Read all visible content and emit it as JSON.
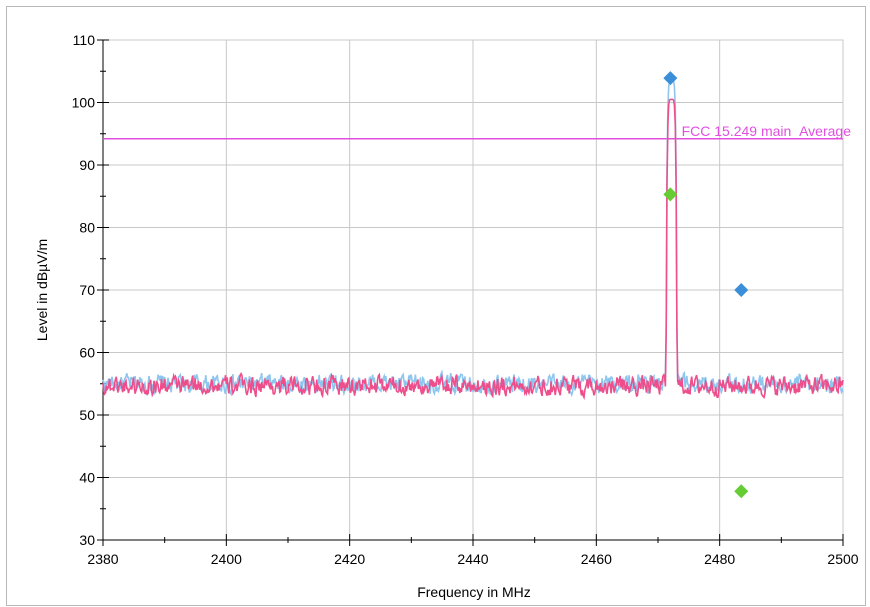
{
  "chart_data": {
    "type": "line",
    "xlabel": "Frequency in MHz",
    "ylabel": "Level in dBµV/m",
    "xlim": [
      2380,
      2500
    ],
    "ylim": [
      30,
      110
    ],
    "x_ticks": [
      "2380",
      "2400",
      "2420",
      "2440",
      "2460",
      "2480",
      "2500"
    ],
    "y_ticks": [
      "30",
      "40",
      "50",
      "60",
      "70",
      "80",
      "90",
      "100",
      "110"
    ],
    "grid": true,
    "limit_line": {
      "label": "FCC 15.249 main_Average",
      "value": 94.2,
      "color": "#e14fe1"
    },
    "series": [
      {
        "color": "#8ec6ee",
        "baseline": 55.0,
        "noise": 1.4,
        "peak": {
          "x": 2472.2,
          "value": 103.5,
          "width": 0.9
        }
      },
      {
        "color": "#ee4f8c",
        "baseline": 54.7,
        "noise": 1.4,
        "peak": {
          "x": 2472.2,
          "value": 100.5,
          "width": 0.9
        }
      }
    ],
    "markers": [
      {
        "x": 2472.0,
        "value": 103.9,
        "color": "#3b8fd8"
      },
      {
        "x": 2472.0,
        "value": 85.3,
        "color": "#66cc33"
      },
      {
        "x": 2483.5,
        "value": 70.0,
        "color": "#3b8fd8"
      },
      {
        "x": 2483.5,
        "value": 37.8,
        "color": "#66cc33"
      }
    ]
  }
}
